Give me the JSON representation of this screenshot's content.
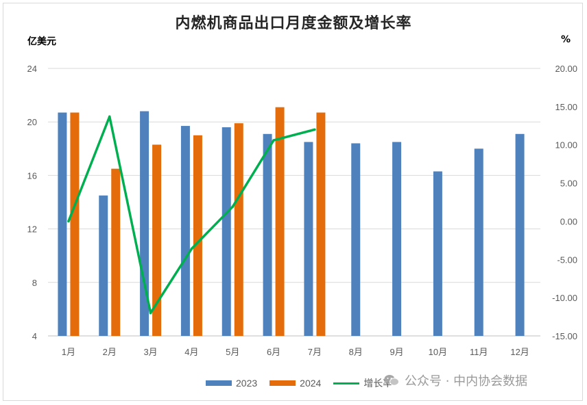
{
  "colors": {
    "s2023": "#4f81bd",
    "s2024": "#e46c0a",
    "growth": "#00b050",
    "grid": "#d9d9d9"
  },
  "chart_data": {
    "type": "bar",
    "title": "内燃机商品出口月度金额及增长率",
    "ylabel_left": "亿美元",
    "ylabel_right": "%",
    "categories": [
      "1月",
      "2月",
      "3月",
      "4月",
      "5月",
      "6月",
      "7月",
      "8月",
      "9月",
      "10月",
      "11月",
      "12月"
    ],
    "ylim_left": [
      4,
      24
    ],
    "yticks_left": [
      "4",
      "8",
      "12",
      "16",
      "20",
      "24"
    ],
    "ylim_right": [
      -15,
      20
    ],
    "yticks_right": [
      "-15.00",
      "-10.00",
      "-5.00",
      "0.00",
      "5.00",
      "10.00",
      "15.00",
      "20.00"
    ],
    "grid": true,
    "legend_position": "bottom",
    "series": [
      {
        "name": "2023",
        "type": "bar",
        "values": [
          20.7,
          14.5,
          20.8,
          19.7,
          19.6,
          19.1,
          18.5,
          18.4,
          18.5,
          16.3,
          18.0,
          19.1
        ]
      },
      {
        "name": "2024",
        "type": "bar",
        "values": [
          20.7,
          16.5,
          18.3,
          19.0,
          19.9,
          21.1,
          20.7,
          null,
          null,
          null,
          null,
          null
        ]
      },
      {
        "name": "增长率",
        "type": "line",
        "axis": "right",
        "values": [
          0.0,
          13.7,
          -12.0,
          -3.6,
          1.9,
          10.6,
          12.0,
          null,
          null,
          null,
          null,
          null
        ]
      }
    ]
  },
  "watermark": {
    "text": "公众号 · 中内协会数据",
    "icon": "wechat-icon"
  }
}
